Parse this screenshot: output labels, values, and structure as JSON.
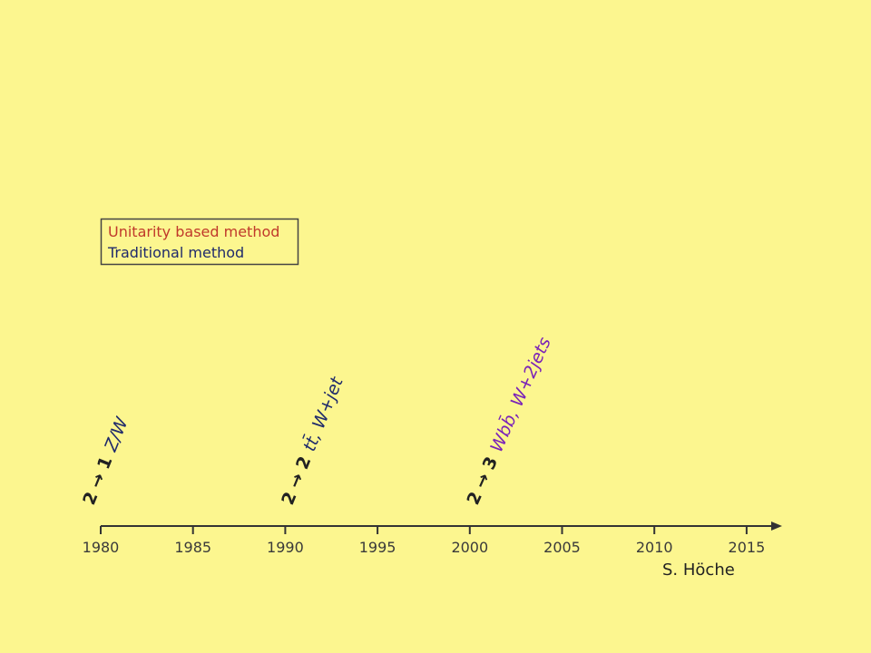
{
  "legend": {
    "items": [
      "Unitarity based method",
      "Traditional method"
    ]
  },
  "axis": {
    "ticks": [
      "1980",
      "1985",
      "1990",
      "1995",
      "2000",
      "2005",
      "2010",
      "2015"
    ]
  },
  "annotations": [
    {
      "process": "2 → 1",
      "final_state": "Z/W"
    },
    {
      "process": "2 → 2",
      "final_state": "tt̄, W+jet"
    },
    {
      "process": "2 → 3",
      "final_state": "Wbb̄, W+2jets"
    }
  ],
  "credit": "S. Höche"
}
